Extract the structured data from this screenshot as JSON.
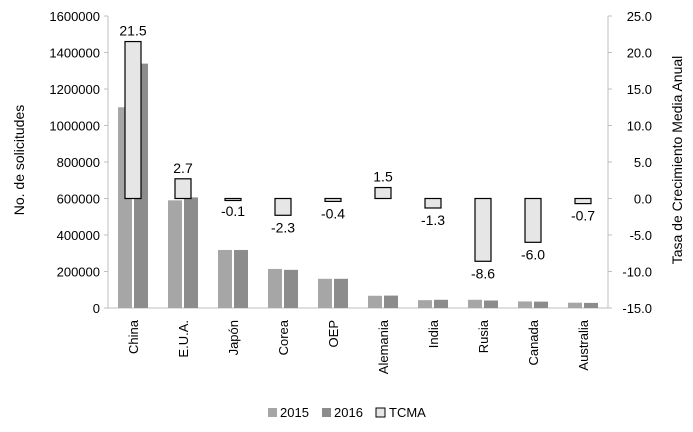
{
  "chart_data": {
    "type": "bar",
    "categories": [
      "China",
      "E.U.A.",
      "Japón",
      "Corea",
      "OEP",
      "Alemania",
      "India",
      "Rusia",
      "Canada",
      "Australia"
    ],
    "series": [
      {
        "name": "2015",
        "axis": "left",
        "color": "#a6a6a6",
        "values": [
          1100000,
          590000,
          318000,
          214000,
          160000,
          67000,
          43000,
          45000,
          36000,
          29000
        ]
      },
      {
        "name": "2016",
        "axis": "left",
        "color": "#8c8c8c",
        "values": [
          1339000,
          606000,
          318000,
          209000,
          160000,
          68000,
          45000,
          41000,
          35000,
          28000
        ]
      },
      {
        "name": "TCMA",
        "axis": "right",
        "color": "#e6e6e6",
        "values": [
          21.5,
          2.7,
          -0.1,
          -2.3,
          -0.4,
          1.5,
          -1.3,
          -8.6,
          -6.0,
          -0.7
        ]
      }
    ],
    "data_labels": [
      "21.5",
      "2.7",
      "-0.1",
      "-2.3",
      "-0.4",
      "1.5",
      "-1.3",
      "-8.6",
      "-6.0",
      "-0.7"
    ],
    "ylabel": "No. de solicitudes",
    "ylabel_right": "Tasa de Crecimiento Media Anual",
    "ylim": [
      0,
      1600000
    ],
    "ylim_right": [
      -15,
      25
    ],
    "yticks": [
      "0",
      "200000",
      "400000",
      "600000",
      "800000",
      "1000000",
      "1200000",
      "1400000",
      "1600000"
    ],
    "yticks_right": [
      "-15.0",
      "-10.0",
      "-5.0",
      "0.0",
      "5.0",
      "10.0",
      "15.0",
      "20.0",
      "25.0"
    ],
    "legend": {
      "position": "bottom",
      "entries": [
        "2015",
        "2016",
        "TCMA"
      ]
    },
    "grid": false
  }
}
